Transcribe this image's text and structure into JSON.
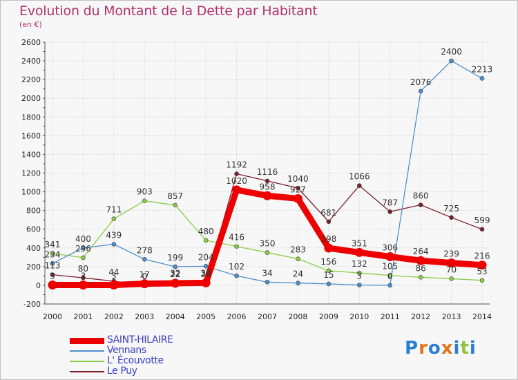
{
  "title": "Evolution du Montant de la Dette par Habitant",
  "unit": "(en €)",
  "brand": {
    "letters": [
      "P",
      "r",
      "o",
      "x",
      "i",
      "t",
      "i"
    ],
    "colors": [
      "#2a7fd4",
      "#e8731a",
      "#2a7fd4",
      "#e8731a",
      "#2a7fd4",
      "#8dc63f",
      "#2a7fd4"
    ]
  },
  "chart_data": {
    "type": "line",
    "title": "Evolution du Montant de la Dette par Habitant",
    "ylabel": "(en €)",
    "xlabel": "",
    "x": [
      "2000",
      "2001",
      "2002",
      "2003",
      "2004",
      "2005",
      "2006",
      "2007",
      "2008",
      "2009",
      "2010",
      "2011",
      "2012",
      "2013",
      "2014"
    ],
    "ylim": [
      -200,
      2600
    ],
    "yticks": [
      -200,
      0,
      200,
      400,
      600,
      800,
      1000,
      1200,
      1400,
      1600,
      1800,
      2000,
      2200,
      2400,
      2600
    ],
    "grid": true,
    "legend_position": "bottom-left",
    "series": [
      {
        "name": "SAINT-HILAIRE",
        "color": "#ee0000",
        "values": [
          3,
          3,
          3,
          17,
          22,
          26,
          1020,
          958,
          927,
          398,
          351,
          306,
          264,
          239,
          216
        ]
      },
      {
        "name": "Vennans",
        "color": "#4f8fcb",
        "values": [
          234,
          400,
          439,
          278,
          199,
          204,
          102,
          34,
          24,
          15,
          3,
          0,
          2076,
          2400,
          2213
        ]
      },
      {
        "name": "L' Écouvotte",
        "color": "#88cc44",
        "values": [
          341,
          296,
          711,
          903,
          857,
          480,
          416,
          350,
          283,
          156,
          132,
          105,
          86,
          70,
          53
        ]
      },
      {
        "name": "Le Puy",
        "color": "#7a1f2a",
        "values": [
          113,
          80,
          44,
          0,
          32,
          32,
          1192,
          1116,
          1040,
          681,
          1066,
          787,
          860,
          725,
          599
        ]
      }
    ]
  }
}
